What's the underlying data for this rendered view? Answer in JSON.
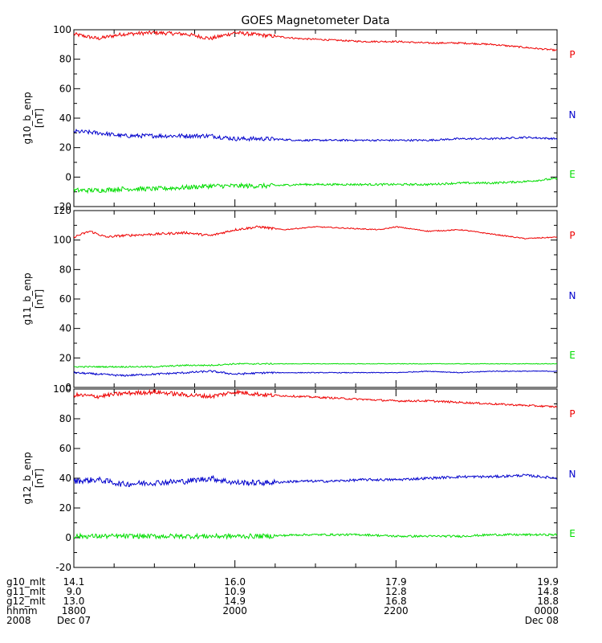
{
  "chart_data": {
    "type": "line",
    "title": "GOES Magnetometer Data",
    "x_range_hours": [
      18,
      24
    ],
    "major_ticks_hours": [
      18,
      20,
      22,
      24
    ],
    "panels": [
      {
        "ylabel": "g10_b_enp",
        "unit": "[nT]",
        "ylim": [
          -20,
          100
        ],
        "yticks": [
          -20,
          0,
          20,
          40,
          60,
          80,
          100
        ],
        "series": [
          {
            "name": "P",
            "color": "#ee0000",
            "noise": 0.8,
            "x": [
              18.0,
              18.3,
              18.6,
              19.0,
              19.4,
              19.7,
              20.0,
              20.4,
              20.8,
              21.2,
              21.6,
              22.0,
              22.4,
              22.8,
              23.2,
              23.6,
              24.0
            ],
            "y": [
              97,
              94,
              97,
              98,
              97,
              94,
              98,
              96,
              94,
              93,
              92,
              92,
              91,
              91,
              90,
              88,
              86
            ]
          },
          {
            "name": "N",
            "color": "#0000cc",
            "noise": 0.9,
            "x": [
              18.0,
              18.3,
              18.6,
              19.0,
              19.4,
              19.7,
              20.0,
              20.4,
              20.8,
              21.2,
              21.6,
              22.0,
              22.4,
              22.8,
              23.2,
              23.6,
              24.0
            ],
            "y": [
              31,
              30,
              28,
              28,
              28,
              28,
              26,
              26,
              25,
              25,
              25,
              25,
              25,
              26,
              26,
              27,
              26
            ]
          },
          {
            "name": "E",
            "color": "#00dd00",
            "noise": 1.0,
            "x": [
              18.0,
              18.3,
              18.6,
              19.0,
              19.4,
              19.7,
              20.0,
              20.4,
              20.8,
              21.2,
              21.6,
              22.0,
              22.4,
              22.8,
              23.2,
              23.6,
              24.0
            ],
            "y": [
              -9,
              -9,
              -8,
              -8,
              -7,
              -6,
              -6,
              -6,
              -5,
              -5,
              -5,
              -5,
              -5,
              -4,
              -4,
              -3,
              -1
            ]
          }
        ]
      },
      {
        "ylabel": "g11_b_enp",
        "unit": "[nT]",
        "ylim": [
          0,
          120
        ],
        "yticks": [
          0,
          20,
          40,
          60,
          80,
          100,
          120
        ],
        "series": [
          {
            "name": "P",
            "color": "#ee0000",
            "noise": 0.5,
            "x": [
              18.0,
              18.2,
              18.4,
              18.6,
              19.0,
              19.4,
              19.7,
              20.0,
              20.3,
              20.6,
              21.0,
              21.4,
              21.8,
              22.0,
              22.4,
              22.8,
              23.2,
              23.6,
              24.0
            ],
            "y": [
              102,
              106,
              102,
              103,
              104,
              105,
              103,
              107,
              109,
              107,
              109,
              108,
              107,
              109,
              106,
              107,
              104,
              101,
              102
            ]
          },
          {
            "name": "N",
            "color": "#0000cc",
            "noise": 0.4,
            "x": [
              18.0,
              18.3,
              18.6,
              19.0,
              19.4,
              19.7,
              20.0,
              20.4,
              20.8,
              21.2,
              21.6,
              22.0,
              22.4,
              22.8,
              23.2,
              23.6,
              24.0
            ],
            "y": [
              10,
              9,
              8,
              9,
              10,
              11,
              9,
              10,
              10,
              10,
              10,
              10,
              11,
              10,
              11,
              11,
              11
            ]
          },
          {
            "name": "E",
            "color": "#00dd00",
            "noise": 0.3,
            "x": [
              18.0,
              18.3,
              18.6,
              19.0,
              19.4,
              19.7,
              20.0,
              20.4,
              20.8,
              21.2,
              21.6,
              22.0,
              22.4,
              22.8,
              23.2,
              23.6,
              24.0
            ],
            "y": [
              14,
              14,
              14,
              14,
              15,
              15,
              16,
              16,
              16,
              16,
              16,
              16,
              16,
              16,
              16,
              16,
              16
            ]
          }
        ]
      },
      {
        "ylabel": "g12_b_enp",
        "unit": "[nT]",
        "ylim": [
          -20,
          100
        ],
        "yticks": [
          -20,
          0,
          20,
          40,
          60,
          80,
          100
        ],
        "series": [
          {
            "name": "P",
            "color": "#ee0000",
            "noise": 0.9,
            "x": [
              18.0,
              18.3,
              18.6,
              19.0,
              19.4,
              19.7,
              20.0,
              20.4,
              20.8,
              21.2,
              21.6,
              22.0,
              22.4,
              22.8,
              23.2,
              23.6,
              24.0
            ],
            "y": [
              96,
              95,
              97,
              98,
              96,
              95,
              98,
              96,
              95,
              94,
              93,
              92,
              92,
              91,
              90,
              89,
              88
            ]
          },
          {
            "name": "N",
            "color": "#0000cc",
            "noise": 1.2,
            "x": [
              18.0,
              18.3,
              18.6,
              19.0,
              19.4,
              19.7,
              20.0,
              20.4,
              20.8,
              21.2,
              21.6,
              22.0,
              22.4,
              22.8,
              23.2,
              23.6,
              24.0
            ],
            "y": [
              38,
              39,
              36,
              37,
              38,
              40,
              37,
              37,
              38,
              38,
              39,
              39,
              40,
              41,
              41,
              42,
              40
            ]
          },
          {
            "name": "E",
            "color": "#00dd00",
            "noise": 1.0,
            "x": [
              18.0,
              18.3,
              18.6,
              19.0,
              19.4,
              19.7,
              20.0,
              20.4,
              20.8,
              21.2,
              21.6,
              22.0,
              22.4,
              22.8,
              23.2,
              23.6,
              24.0
            ],
            "y": [
              1,
              1,
              1,
              1,
              1,
              1,
              1,
              1,
              2,
              2,
              2,
              1,
              1,
              1,
              2,
              2,
              2
            ]
          }
        ]
      }
    ],
    "x_axis_rows": [
      {
        "label": "g10_mlt",
        "values": [
          "14.1",
          "16.0",
          "17.9",
          "19.9"
        ]
      },
      {
        "label": "g11_mlt",
        "values": [
          "9.0",
          "10.9",
          "12.8",
          "14.8"
        ]
      },
      {
        "label": "g12_mlt",
        "values": [
          "13.0",
          "14.9",
          "16.8",
          "18.8"
        ]
      },
      {
        "label": "hhmm",
        "values": [
          "1800",
          "2000",
          "2200",
          "0000"
        ]
      },
      {
        "label": "2008",
        "values": [
          "Dec 07",
          "",
          "",
          "Dec 08"
        ]
      }
    ]
  }
}
